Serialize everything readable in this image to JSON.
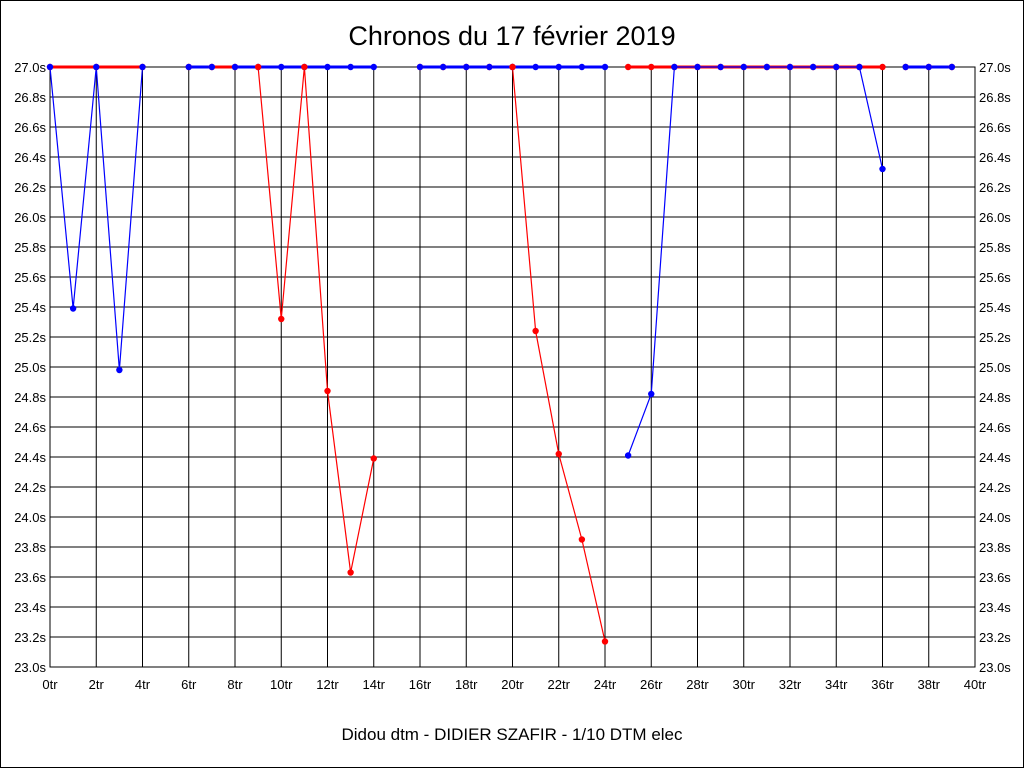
{
  "chart_data": {
    "type": "line",
    "title": "Chronos du 17 février 2019",
    "subtitle": "Didou dtm - DIDIER SZAFIR - 1/10 DTM elec",
    "xlabel": "",
    "ylabel": "",
    "xlim": [
      0,
      40
    ],
    "ylim": [
      23.0,
      27.0
    ],
    "x_tick_labels": [
      "0tr",
      "2tr",
      "4tr",
      "6tr",
      "8tr",
      "10tr",
      "12tr",
      "14tr",
      "16tr",
      "18tr",
      "20tr",
      "22tr",
      "24tr",
      "26tr",
      "28tr",
      "30tr",
      "32tr",
      "34tr",
      "36tr",
      "38tr",
      "40tr"
    ],
    "x_tick_values": [
      0,
      2,
      4,
      6,
      8,
      10,
      12,
      14,
      16,
      18,
      20,
      22,
      24,
      26,
      28,
      30,
      32,
      34,
      36,
      38,
      40
    ],
    "y_tick_labels": [
      "23.0s",
      "23.2s",
      "23.4s",
      "23.6s",
      "23.8s",
      "24.0s",
      "24.2s",
      "24.4s",
      "24.6s",
      "24.8s",
      "25.0s",
      "25.2s",
      "25.4s",
      "25.6s",
      "25.8s",
      "26.0s",
      "26.2s",
      "26.4s",
      "26.6s",
      "26.8s",
      "27.0s"
    ],
    "y_tick_values": [
      23.0,
      23.2,
      23.4,
      23.6,
      23.8,
      24.0,
      24.2,
      24.4,
      24.6,
      24.8,
      25.0,
      25.2,
      25.4,
      25.6,
      25.8,
      26.0,
      26.2,
      26.4,
      26.6,
      26.8,
      27.0
    ],
    "grid": true,
    "y_axis_both_sides": true,
    "colors": {
      "red": "#ff0000",
      "blue": "#0000ff"
    },
    "series": [
      {
        "color": "red",
        "points": [
          [
            0,
            27.0
          ],
          [
            2,
            27.0
          ],
          [
            4,
            27.0
          ]
        ]
      },
      {
        "color": "blue",
        "points": [
          [
            0,
            27.0
          ],
          [
            1,
            25.39
          ],
          [
            2,
            27.0
          ],
          [
            3,
            24.98
          ],
          [
            4,
            27.0
          ]
        ]
      },
      {
        "color": "red",
        "points": [
          [
            6,
            27.0
          ],
          [
            7,
            27.0
          ],
          [
            8,
            27.0
          ]
        ]
      },
      {
        "color": "blue",
        "points": [
          [
            6,
            27.0
          ],
          [
            7,
            27.0
          ]
        ]
      },
      {
        "color": "blue",
        "points": [
          [
            8,
            27.0
          ],
          [
            9,
            27.0
          ],
          [
            10,
            27.0
          ],
          [
            11,
            27.0
          ],
          [
            12,
            27.0
          ],
          [
            13,
            27.0
          ],
          [
            14,
            27.0
          ]
        ]
      },
      {
        "color": "red",
        "points": [
          [
            9,
            27.0
          ],
          [
            10,
            25.32
          ],
          [
            11,
            27.0
          ],
          [
            12,
            24.84
          ],
          [
            13,
            23.63
          ],
          [
            14,
            24.39
          ]
        ]
      },
      {
        "color": "red",
        "points": [
          [
            16,
            27.0
          ],
          [
            17,
            27.0
          ],
          [
            18,
            27.0
          ],
          [
            19,
            27.0
          ],
          [
            20,
            27.0
          ]
        ]
      },
      {
        "color": "blue",
        "points": [
          [
            16,
            27.0
          ],
          [
            17,
            27.0
          ],
          [
            18,
            27.0
          ],
          [
            19,
            27.0
          ],
          [
            20,
            27.0
          ],
          [
            21,
            27.0
          ],
          [
            22,
            27.0
          ],
          [
            23,
            27.0
          ],
          [
            24,
            27.0
          ]
        ]
      },
      {
        "color": "red",
        "points": [
          [
            20,
            27.0
          ],
          [
            21,
            25.24
          ],
          [
            22,
            24.42
          ],
          [
            23,
            23.85
          ],
          [
            24,
            23.17
          ]
        ]
      },
      {
        "color": "red",
        "points": [
          [
            25,
            27.0
          ],
          [
            26,
            27.0
          ],
          [
            27,
            27.0
          ],
          [
            28,
            27.0
          ],
          [
            29,
            27.0
          ],
          [
            30,
            27.0
          ],
          [
            31,
            27.0
          ],
          [
            32,
            27.0
          ],
          [
            33,
            27.0
          ],
          [
            34,
            27.0
          ],
          [
            35,
            27.0
          ],
          [
            36,
            27.0
          ]
        ]
      },
      {
        "color": "blue",
        "points": [
          [
            25,
            24.41
          ],
          [
            26,
            24.82
          ],
          [
            27,
            27.0
          ],
          [
            28,
            27.0
          ],
          [
            29,
            27.0
          ],
          [
            30,
            27.0
          ],
          [
            31,
            27.0
          ],
          [
            32,
            27.0
          ],
          [
            33,
            27.0
          ],
          [
            34,
            27.0
          ],
          [
            35,
            27.0
          ],
          [
            36,
            26.32
          ]
        ]
      },
      {
        "color": "red",
        "points": [
          [
            37,
            27.0
          ],
          [
            38,
            27.0
          ],
          [
            39,
            27.0
          ]
        ]
      },
      {
        "color": "blue",
        "points": [
          [
            37,
            27.0
          ],
          [
            38,
            27.0
          ],
          [
            39,
            27.0
          ]
        ]
      }
    ]
  }
}
